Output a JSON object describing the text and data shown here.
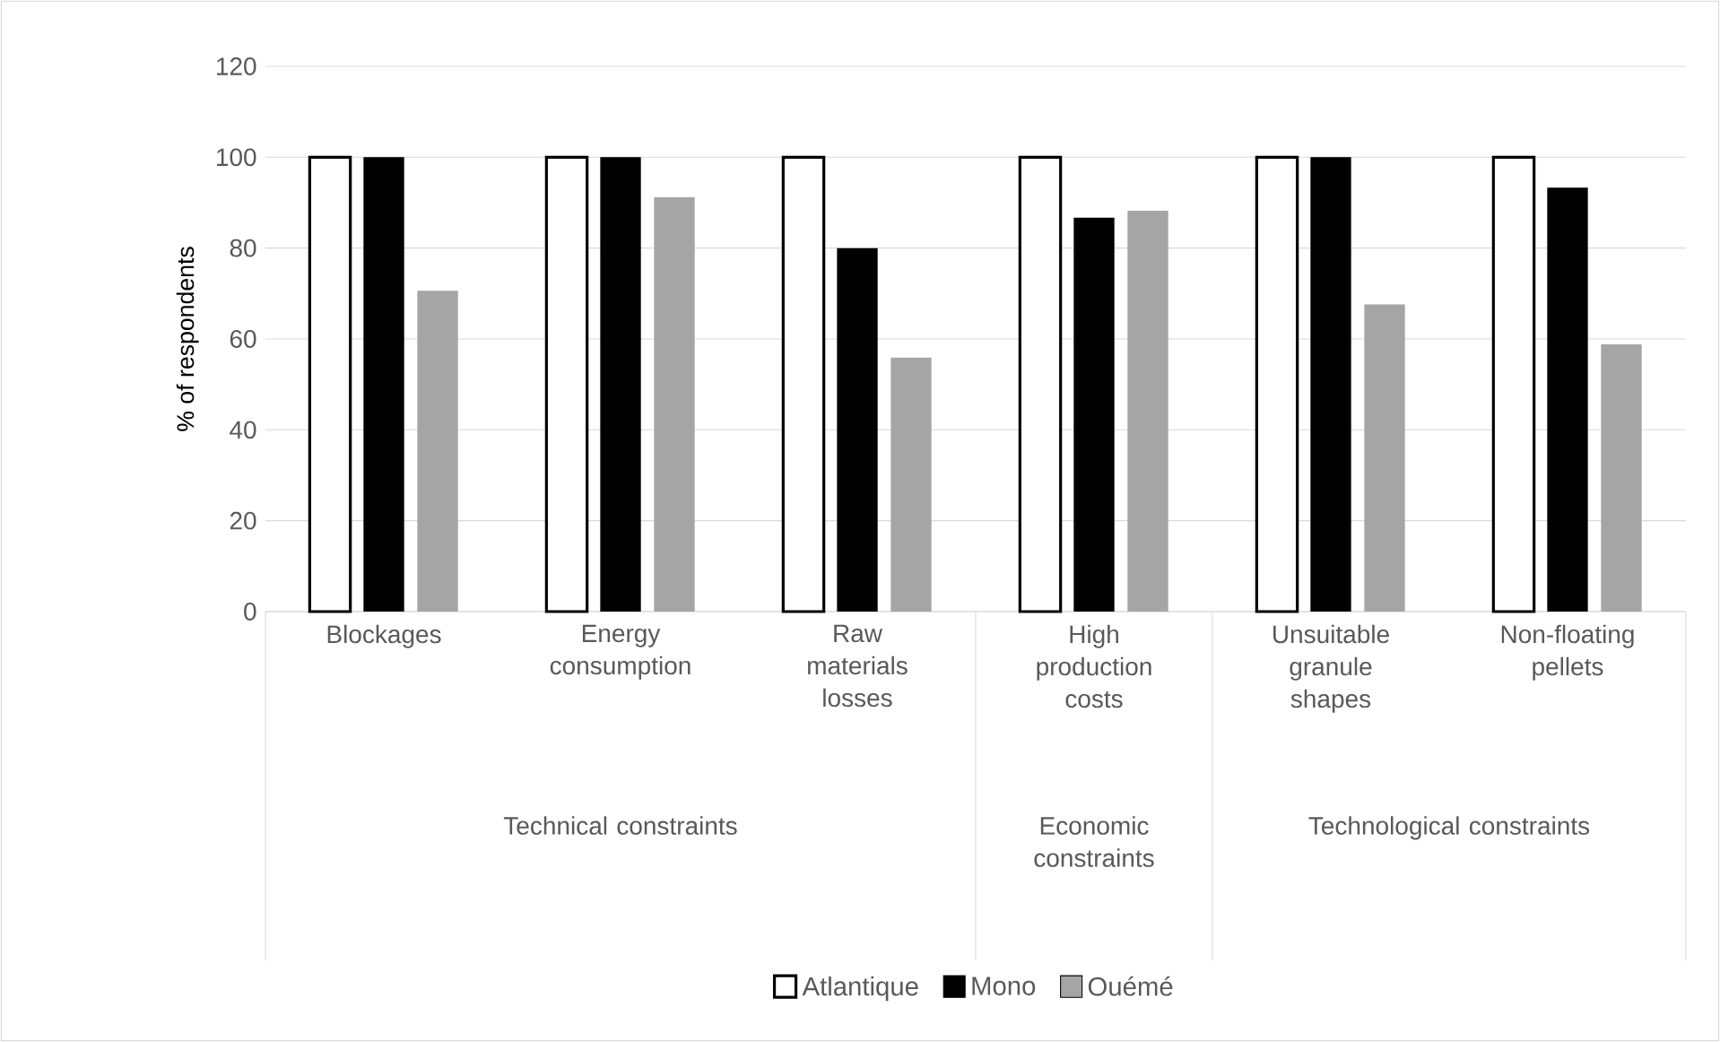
{
  "chart_data": {
    "type": "bar",
    "ylabel": "% of respondents",
    "categories": [
      "Blockages",
      "Energy consumption",
      "Raw materials losses",
      "High production costs",
      "Unsuitable granule shapes",
      "Non-floating pellets"
    ],
    "series": [
      {
        "name": "Atlantique",
        "color": "#ffffff",
        "values": [
          100,
          100,
          100,
          100,
          100,
          100
        ]
      },
      {
        "name": "Mono",
        "color": "#000000",
        "values": [
          100,
          100,
          80,
          86.7,
          100,
          93.3
        ]
      },
      {
        "name": "Ouémé",
        "color": "#a5a5a5",
        "values": [
          70.6,
          91.2,
          55.9,
          88.2,
          67.6,
          58.8
        ]
      }
    ],
    "annotations": [
      "Technical constraints",
      "Economic constraints",
      "Technological constraints"
    ],
    "ylim": [
      0,
      120
    ],
    "yticks": [
      0,
      20,
      40,
      60,
      80,
      100,
      120
    ],
    "grid": "y",
    "legend": "bottom"
  }
}
